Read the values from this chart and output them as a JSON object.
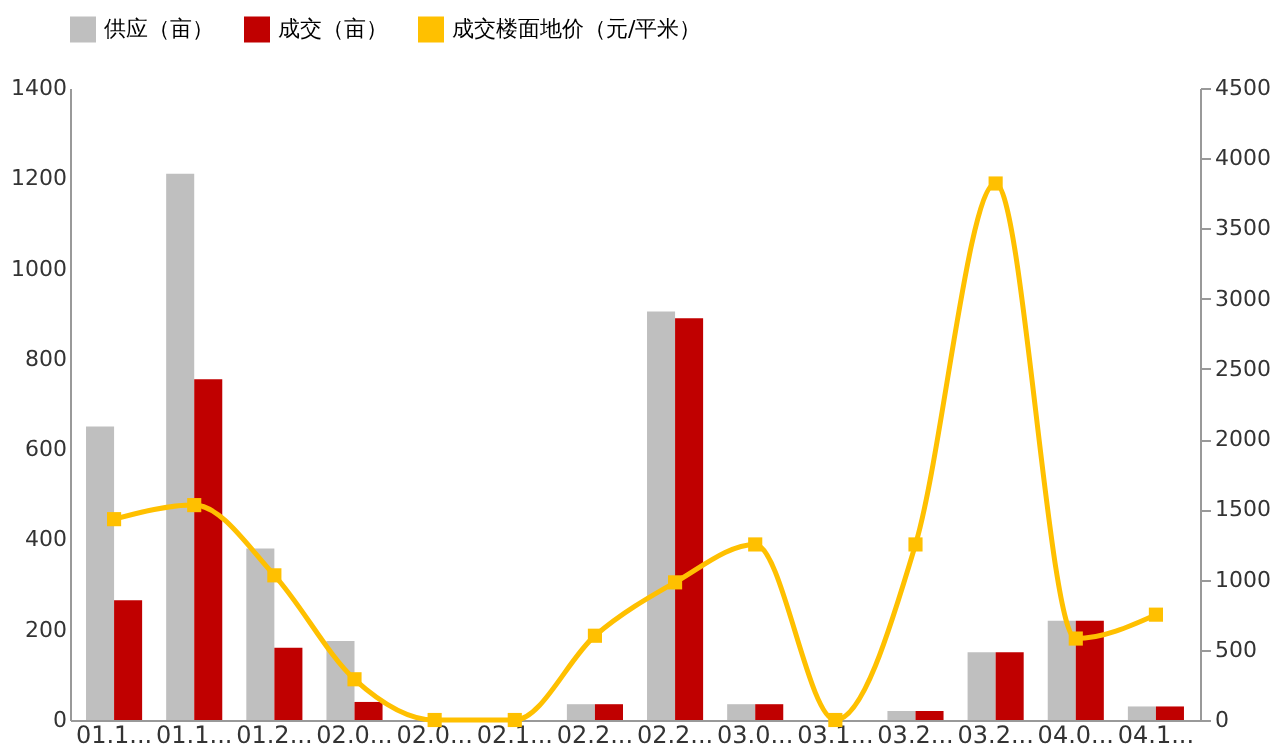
{
  "chart_data": {
    "type": "bar",
    "categories": [
      "01.1...",
      "01.1...",
      "01.2...",
      "02.0...",
      "02.0...",
      "02.1...",
      "02.2...",
      "02.2...",
      "03.0...",
      "03.1...",
      "03.2...",
      "03.2...",
      "04.0...",
      "04.1..."
    ],
    "series": [
      {
        "name": "供应（亩）",
        "color": "#bfbfbf",
        "values": [
          650,
          1210,
          380,
          175,
          0,
          0,
          35,
          905,
          35,
          0,
          20,
          150,
          220,
          30
        ]
      },
      {
        "name": "成交（亩）",
        "color": "#c00000",
        "values": [
          265,
          755,
          160,
          40,
          0,
          0,
          35,
          890,
          35,
          0,
          20,
          150,
          220,
          30
        ]
      },
      {
        "name": "成交楼面地价（元/平米）",
        "color": "#ffc000",
        "type": "line",
        "axis": "y2",
        "marker": "square",
        "values": [
          1430,
          1530,
          1030,
          290,
          0,
          0,
          600,
          980,
          1250,
          0,
          1250,
          3820,
          580,
          750
        ]
      }
    ],
    "ylim": [
      0,
      1400
    ],
    "yticks": [
      0,
      200,
      400,
      600,
      800,
      1000,
      1200,
      1400
    ],
    "y2lim": [
      0,
      4500
    ],
    "y2ticks": [
      0,
      500,
      1000,
      1500,
      2000,
      2500,
      3000,
      3500,
      4000,
      4500
    ],
    "grid": false,
    "legend": "top"
  }
}
